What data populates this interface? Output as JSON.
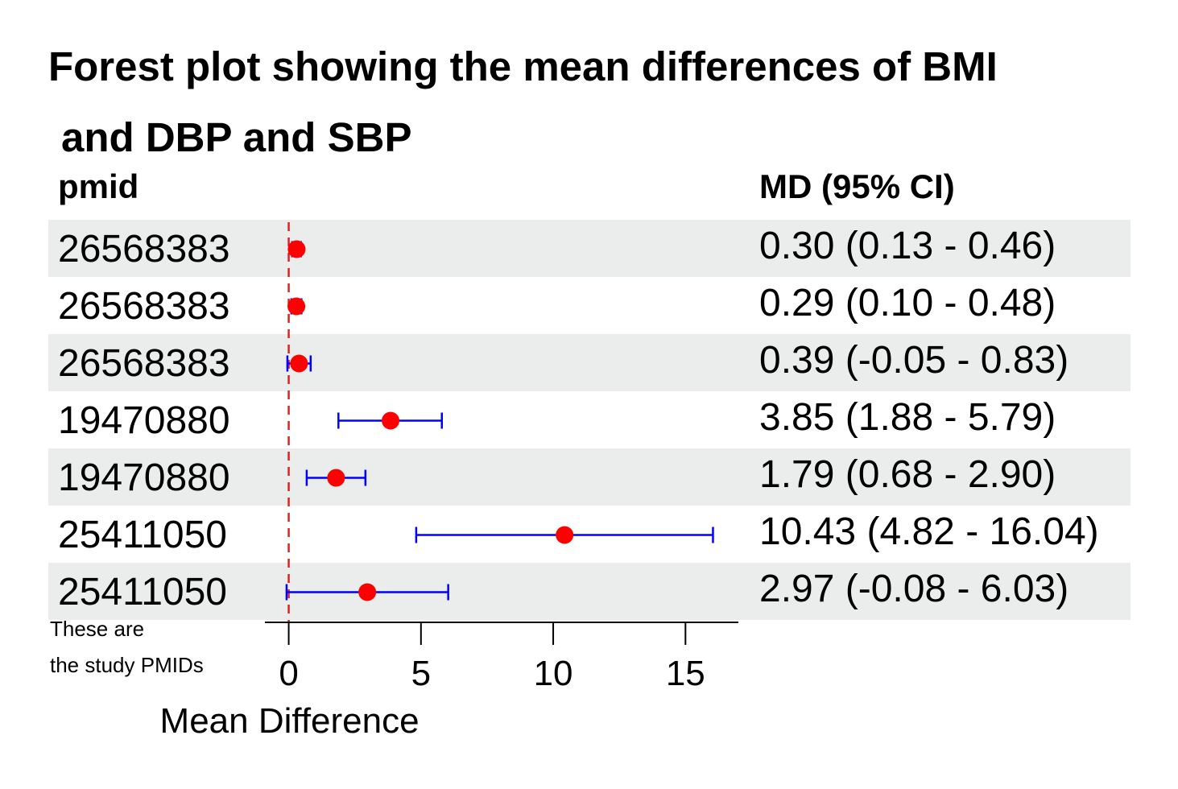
{
  "colors": {
    "point": "#ff0000",
    "ci_line": "#0000ff",
    "reference_line": "#dd2222",
    "row_shade": "#ebeded",
    "axis": "#000000"
  },
  "note": {
    "line1": "These are",
    "line2": "the study PMIDs"
  },
  "chart_data": {
    "type": "forest",
    "title_line1": "Forest plot showing the mean differences of BMI",
    "title_line2": "and DBP and SBP",
    "column_headers": {
      "left": "pmid",
      "right": "MD (95% CI)"
    },
    "xlabel": "Mean Difference",
    "xlim": [
      -0.9,
      17.0
    ],
    "xticks": [
      0,
      5,
      10,
      15
    ],
    "xtick_labels": [
      "0",
      "5",
      "10",
      "15"
    ],
    "reference_line": 0,
    "rows": [
      {
        "pmid": "26568383",
        "md": 0.3,
        "lower": 0.13,
        "upper": 0.46,
        "label": "0.30 (0.13 - 0.46)",
        "shaded": true
      },
      {
        "pmid": "26568383",
        "md": 0.29,
        "lower": 0.1,
        "upper": 0.48,
        "label": "0.29 (0.10 - 0.48)",
        "shaded": false
      },
      {
        "pmid": "26568383",
        "md": 0.39,
        "lower": -0.05,
        "upper": 0.83,
        "label": "0.39 (-0.05 - 0.83)",
        "shaded": true
      },
      {
        "pmid": "19470880",
        "md": 3.85,
        "lower": 1.88,
        "upper": 5.79,
        "label": "3.85 (1.88 - 5.79)",
        "shaded": false
      },
      {
        "pmid": "19470880",
        "md": 1.79,
        "lower": 0.68,
        "upper": 2.9,
        "label": "1.79 (0.68 - 2.90)",
        "shaded": true
      },
      {
        "pmid": "25411050",
        "md": 10.43,
        "lower": 4.82,
        "upper": 16.04,
        "label": "10.43 (4.82 - 16.04)",
        "shaded": false
      },
      {
        "pmid": "25411050",
        "md": 2.97,
        "lower": -0.08,
        "upper": 6.03,
        "label": "2.97 (-0.08 - 6.03)",
        "shaded": true
      }
    ]
  }
}
